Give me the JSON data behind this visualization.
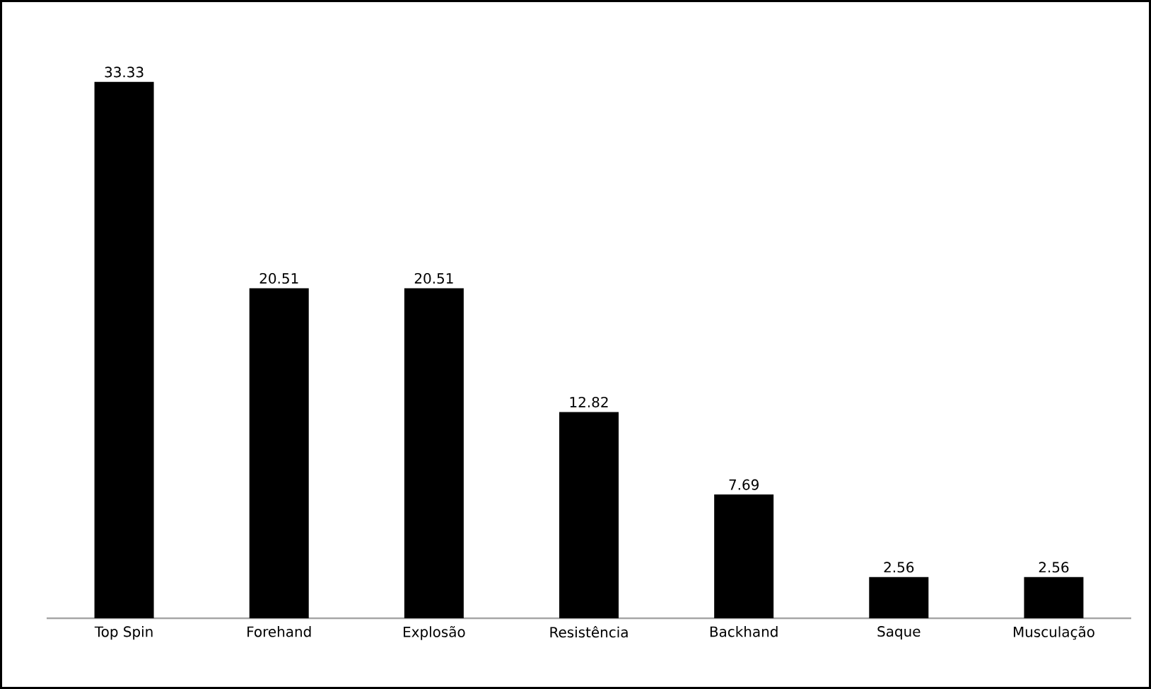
{
  "chart_data": {
    "type": "bar",
    "categories": [
      "Top Spin",
      "Forehand",
      "Explosão",
      "Resistência",
      "Backhand",
      "Saque",
      "Musculação"
    ],
    "values": [
      33.33,
      20.51,
      20.51,
      12.82,
      7.69,
      2.56,
      2.56
    ],
    "color": "#000000",
    "data_labels": true
  }
}
